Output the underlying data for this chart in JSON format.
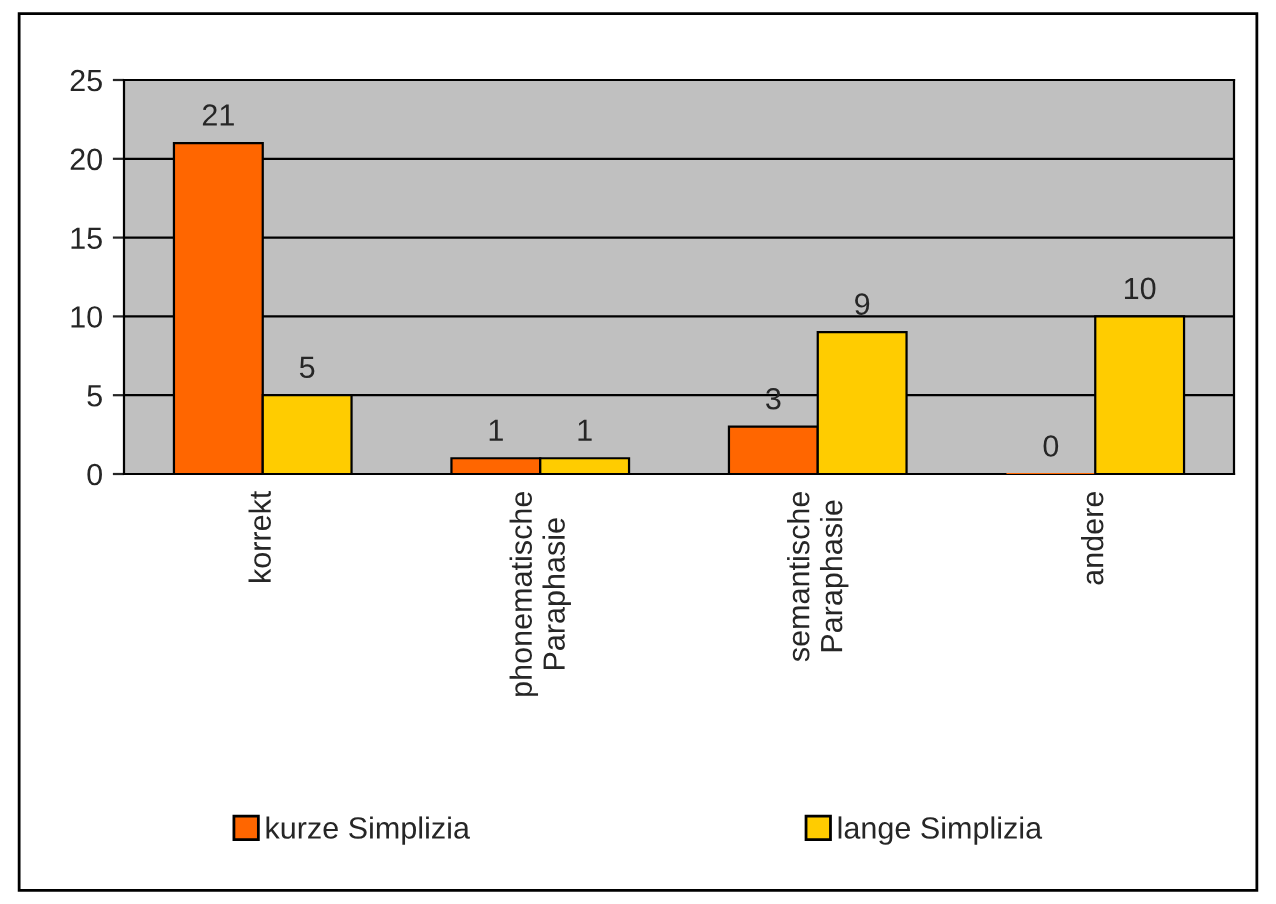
{
  "chart_data": {
    "type": "bar",
    "categories": [
      "korrekt",
      "phonematische\nParaphasie",
      "semantische\nParaphasie",
      "andere"
    ],
    "series": [
      {
        "name": "kurze Simplizia",
        "color": "#ff6600",
        "values": [
          21,
          1,
          3,
          0
        ]
      },
      {
        "name": "lange Simplizia",
        "color": "#ffcc00",
        "values": [
          5,
          1,
          9,
          10
        ]
      }
    ],
    "ylim": [
      0,
      25
    ],
    "yticks": [
      0,
      5,
      10,
      15,
      20,
      25
    ],
    "grid": "y",
    "legend": "bottom",
    "data_labels": true
  }
}
